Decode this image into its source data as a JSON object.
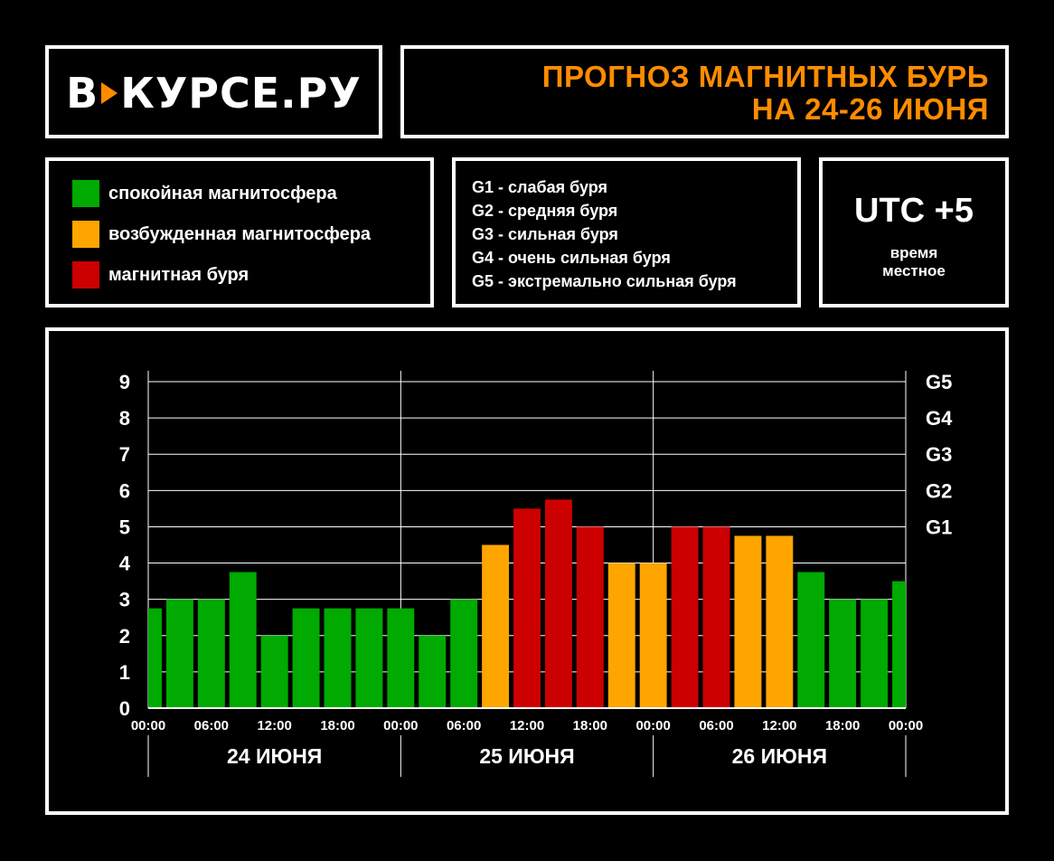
{
  "logo": {
    "left": "В",
    "right": "КУРСЕ.РУ"
  },
  "title": {
    "line1": "ПРОГНОЗ МАГНИТНЫХ БУРЬ",
    "line2": "НА 24-26 ИЮНЯ"
  },
  "legend": [
    {
      "label": "спокойная магнитосфера",
      "color": "#00aa00"
    },
    {
      "label": "возбужденная магнитосфера",
      "color": "#ffa500"
    },
    {
      "label": "магнитная буря",
      "color": "#cc0000"
    }
  ],
  "g_levels": [
    "G1 - слабая буря",
    "G2 - средняя буря",
    "G3 - сильная буря",
    "G4 - очень сильная буря",
    "G5 - экстремально сильная буря"
  ],
  "timezone": {
    "label": "UTC +5",
    "sub1": "время",
    "sub2": "местное"
  },
  "chart_data": {
    "type": "bar",
    "ylim": [
      0,
      9
    ],
    "yticks": [
      "0",
      "1",
      "2",
      "3",
      "4",
      "5",
      "6",
      "7",
      "8",
      "9"
    ],
    "right_ticks": [
      {
        "label": "G1",
        "value": 5
      },
      {
        "label": "G2",
        "value": 6
      },
      {
        "label": "G3",
        "value": 7
      },
      {
        "label": "G4",
        "value": 8
      },
      {
        "label": "G5",
        "value": 9
      }
    ],
    "xticks": [
      "00:00",
      "06:00",
      "12:00",
      "18:00",
      "00:00",
      "06:00",
      "12:00",
      "18:00",
      "00:00",
      "06:00",
      "12:00",
      "18:00",
      "00:00"
    ],
    "days": [
      "24 ИЮНЯ",
      "25 ИЮНЯ",
      "26 ИЮНЯ"
    ],
    "bin_hours": 3,
    "values": [
      2.75,
      3,
      3,
      3.75,
      2,
      2.75,
      2.75,
      2.75,
      2.75,
      2,
      3,
      4.5,
      5.5,
      5.75,
      5,
      4,
      4,
      5,
      5,
      4.75,
      4.75,
      3.75,
      3,
      3,
      3.5
    ],
    "colors": {
      "quiet": "#00aa00",
      "active": "#ffa500",
      "storm": "#cc0000"
    },
    "status": [
      "quiet",
      "quiet",
      "quiet",
      "quiet",
      "quiet",
      "quiet",
      "quiet",
      "quiet",
      "quiet",
      "quiet",
      "quiet",
      "active",
      "storm",
      "storm",
      "storm",
      "active",
      "active",
      "storm",
      "storm",
      "active",
      "active",
      "quiet",
      "quiet",
      "quiet",
      "quiet"
    ],
    "grid": true
  }
}
